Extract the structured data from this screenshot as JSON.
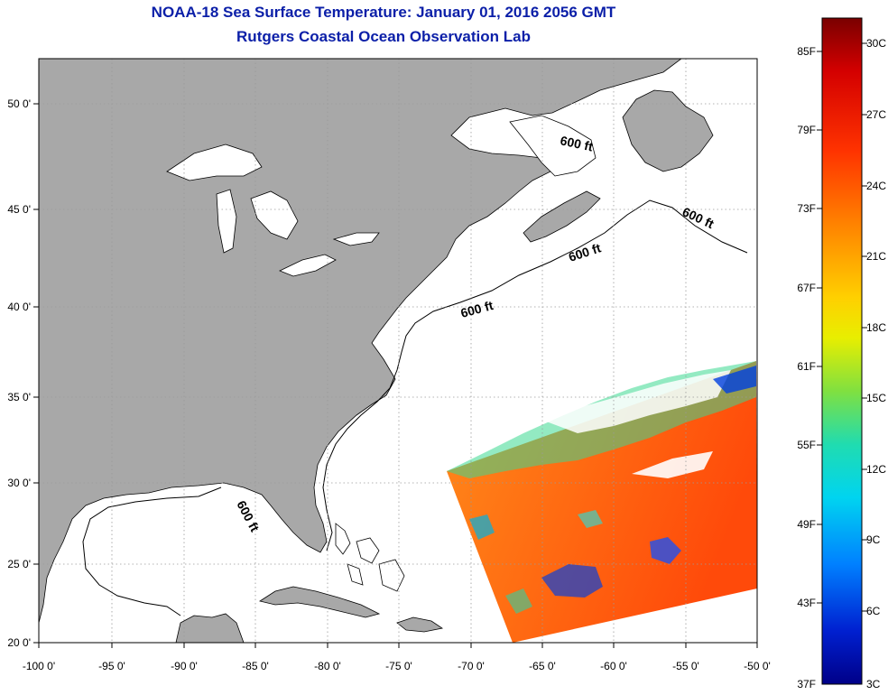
{
  "header": {
    "title": "NOAA-18 Sea Surface Temperature:  January 01, 2016 2056 GMT",
    "subtitle": "Rutgers Coastal Ocean Observation Lab"
  },
  "map": {
    "lon_ticks": [
      "-100 0'",
      "-95 0'",
      "-90 0'",
      "-85 0'",
      "-80 0'",
      "-75 0'",
      "-70 0'",
      "-65 0'",
      "-60 0'",
      "-55 0'",
      "-50 0'"
    ],
    "lat_ticks": [
      "50 0'",
      "45 0'",
      "40 0'",
      "35 0'",
      "30 0'",
      "25 0'",
      "20 0'"
    ],
    "isobath_labels": [
      "600 ft",
      "600 ft",
      "600 ft",
      "600 ft",
      "600 ft"
    ],
    "colors": {
      "land": "#a8a8a8",
      "ocean": "#ffffff",
      "grid": "#9a9a9a"
    }
  },
  "colorbar": {
    "fahrenheit": [
      "85F",
      "79F",
      "73F",
      "67F",
      "61F",
      "55F",
      "49F",
      "43F",
      "37F"
    ],
    "celsius": [
      "30C",
      "27C",
      "24C",
      "21C",
      "18C",
      "15C",
      "12C",
      "9C",
      "6C",
      "3C"
    ],
    "colors": [
      "#7a0000",
      "#d40000",
      "#ff3300",
      "#ff7a00",
      "#ffc000",
      "#f2f200",
      "#a6e600",
      "#3ad890",
      "#00d8e6",
      "#008cff",
      "#0030e0",
      "#000090"
    ]
  }
}
